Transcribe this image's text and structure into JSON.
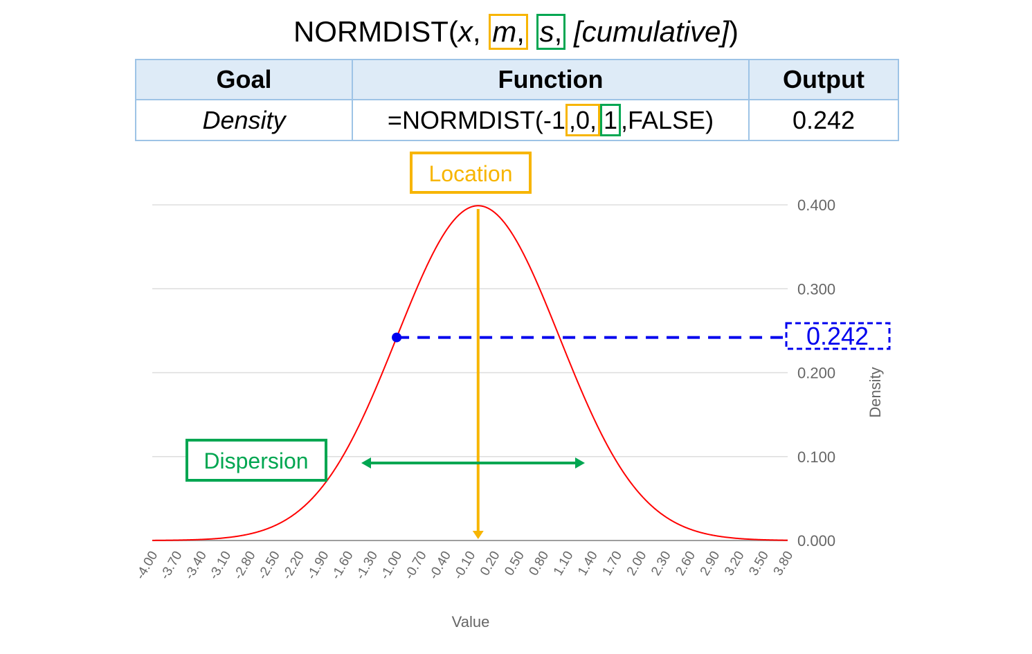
{
  "header": {
    "func_name": "NORMDIST(",
    "arg_x": "x",
    "sep1": ", ",
    "arg_m": "m",
    "sep_m": ",",
    "arg_s": "s",
    "sep_s": ",",
    "arg_cumulative": " [cumulative]",
    "close": ")"
  },
  "table": {
    "headers": [
      "Goal",
      "Function",
      "Output"
    ],
    "row": {
      "goal": "Density",
      "function_prefix": "=NORMDIST(-1",
      "function_m": ",0,",
      "function_s": "1",
      "function_suffix": ",FALSE)",
      "output": "0.242"
    }
  },
  "annotations": {
    "location_label": "Location",
    "dispersion_label": "Dispersion",
    "value_label": "0.242"
  },
  "colors": {
    "curve": "#ff0000",
    "location": "#f7b500",
    "dispersion": "#00a651",
    "value_marker": "#0000ee",
    "grid": "#dddddd",
    "axis_text": "#666666"
  },
  "chart_data": {
    "type": "line",
    "xlabel": "Value",
    "ylabel": "Density",
    "x_tick_labels": [
      "-4.00",
      "-3.70",
      "-3.40",
      "-3.10",
      "-2.80",
      "-2.50",
      "-2.20",
      "-1.90",
      "-1.60",
      "-1.30",
      "-1.00",
      "-0.70",
      "-0.40",
      "-0.10",
      "0.20",
      "0.50",
      "0.80",
      "1.10",
      "1.40",
      "1.70",
      "2.00",
      "2.30",
      "2.60",
      "2.90",
      "3.20",
      "3.50",
      "3.80"
    ],
    "y_ticks": [
      "0.000",
      "0.100",
      "0.200",
      "0.300",
      "0.400"
    ],
    "ylim": [
      0,
      0.4
    ],
    "xlim": [
      -4.0,
      3.8
    ],
    "series": [
      {
        "name": "",
        "distribution": "normal",
        "mean": 0,
        "sd": 1,
        "x_start": -4.0,
        "x_end": 4.0,
        "x_step": 0.05
      }
    ],
    "highlight_point": {
      "x": -1.0,
      "y": 0.242
    },
    "location_x": 0.0,
    "dispersion_range": [
      -1.0,
      1.0
    ]
  }
}
